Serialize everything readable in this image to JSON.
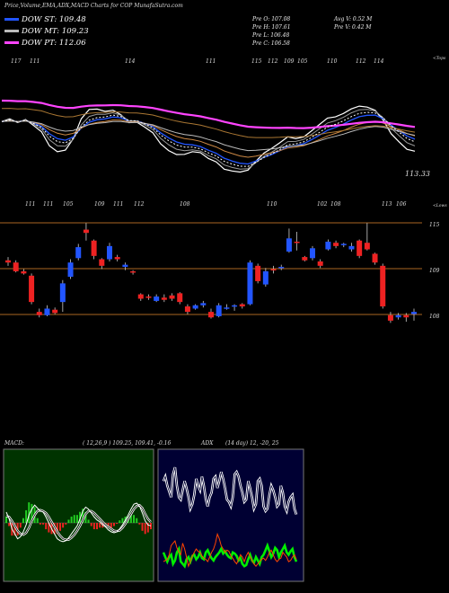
{
  "header": {
    "title": "Price,Volume,EMA,ADX,MACD Charts for COP MunafaSutra.com"
  },
  "legend": [
    {
      "label": "DOW ST: 109.48",
      "color": "#2255ff"
    },
    {
      "label": "DOW MT: 109.23",
      "color": "#bbbbbb"
    },
    {
      "label": "DOW PT: 112.06",
      "color": "#ff44ff"
    }
  ],
  "stats": {
    "col1": [
      "Pre O: 107.08",
      "Pre H: 107.61",
      "Pre L: 106.48",
      "Pre C: 106.58"
    ],
    "col2": [
      "Avg V: 0.52 M",
      "Pre V: 0.42 M"
    ]
  },
  "chart_data": [
    {
      "type": "line",
      "name": "ema-panel",
      "upper_tag": "<Tops",
      "lower_tag": "<Lows",
      "last_label": "113.33",
      "top_labels": [
        "117",
        "111",
        "114",
        "111",
        "115",
        "112",
        "109",
        "105",
        "110",
        "112",
        "114"
      ],
      "bottom_labels": [
        "111",
        "111",
        "105",
        "109",
        "111",
        "112",
        "108",
        "110",
        "102",
        "108",
        "113",
        "106"
      ],
      "close": [
        112,
        113,
        111,
        113,
        110,
        109,
        105,
        106,
        108,
        112,
        117,
        116,
        114,
        113,
        114,
        112,
        110,
        112,
        110,
        109,
        106,
        106,
        106,
        107,
        108,
        107,
        105,
        105,
        103,
        104,
        104,
        105,
        108,
        109,
        109,
        110,
        111,
        109,
        110,
        112,
        113,
        114,
        113,
        114,
        115,
        115,
        114,
        113,
        110,
        107,
        107,
        106,
        107
      ]
    },
    {
      "type": "candlestick",
      "name": "price-panel",
      "levels": [
        "115",
        "109",
        "108"
      ],
      "candles": [
        {
          "o": 112,
          "h": 112.3,
          "l": 111.5,
          "c": 111.8
        },
        {
          "o": 111.8,
          "h": 112.0,
          "l": 110.9,
          "c": 111.0
        },
        {
          "o": 111.0,
          "h": 111.2,
          "l": 110.7,
          "c": 110.8
        },
        {
          "o": 110.6,
          "h": 110.8,
          "l": 108.0,
          "c": 108.2
        },
        {
          "o": 107.3,
          "h": 107.6,
          "l": 106.8,
          "c": 107.0
        },
        {
          "o": 107.0,
          "h": 107.9,
          "l": 106.9,
          "c": 107.6
        },
        {
          "o": 107.5,
          "h": 107.7,
          "l": 107.1,
          "c": 107.2
        },
        {
          "o": 108.2,
          "h": 110.2,
          "l": 107.3,
          "c": 109.9
        },
        {
          "o": 110.5,
          "h": 112.1,
          "l": 110.3,
          "c": 111.8
        },
        {
          "o": 112.2,
          "h": 113.5,
          "l": 112.0,
          "c": 113.2
        },
        {
          "o": 114.8,
          "h": 115.4,
          "l": 113.8,
          "c": 114.5
        },
        {
          "o": 113.8,
          "h": 113.9,
          "l": 112.1,
          "c": 112.4
        },
        {
          "o": 112.1,
          "h": 112.2,
          "l": 111.2,
          "c": 111.5
        },
        {
          "o": 112.1,
          "h": 113.6,
          "l": 111.9,
          "c": 113.3
        },
        {
          "o": 112.3,
          "h": 112.5,
          "l": 111.9,
          "c": 112.1
        },
        {
          "o": 111.4,
          "h": 111.8,
          "l": 111.1,
          "c": 111.6
        },
        {
          "o": 111.0,
          "h": 111.1,
          "l": 110.7,
          "c": 110.9
        },
        {
          "o": 108.9,
          "h": 109.0,
          "l": 108.3,
          "c": 108.5
        },
        {
          "o": 108.7,
          "h": 108.9,
          "l": 108.4,
          "c": 108.6
        },
        {
          "o": 108.3,
          "h": 108.9,
          "l": 108.2,
          "c": 108.7
        },
        {
          "o": 108.6,
          "h": 108.9,
          "l": 108.2,
          "c": 108.4
        },
        {
          "o": 108.8,
          "h": 109.0,
          "l": 108.3,
          "c": 108.5
        },
        {
          "o": 109.0,
          "h": 109.1,
          "l": 108.0,
          "c": 108.2
        },
        {
          "o": 107.8,
          "h": 108.0,
          "l": 107.1,
          "c": 107.3
        },
        {
          "o": 107.6,
          "h": 108.0,
          "l": 107.5,
          "c": 107.9
        },
        {
          "o": 107.9,
          "h": 108.3,
          "l": 107.7,
          "c": 108.1
        },
        {
          "o": 107.3,
          "h": 107.6,
          "l": 106.7,
          "c": 106.8
        },
        {
          "o": 106.9,
          "h": 108.1,
          "l": 106.8,
          "c": 107.9
        },
        {
          "o": 107.6,
          "h": 108.0,
          "l": 107.5,
          "c": 107.7
        },
        {
          "o": 107.8,
          "h": 108.0,
          "l": 107.4,
          "c": 107.9
        },
        {
          "o": 108.0,
          "h": 108.1,
          "l": 107.6,
          "c": 107.8
        },
        {
          "o": 108.0,
          "h": 112.0,
          "l": 107.9,
          "c": 111.8
        },
        {
          "o": 111.5,
          "h": 111.7,
          "l": 109.9,
          "c": 110.1
        },
        {
          "o": 109.8,
          "h": 111.3,
          "l": 109.6,
          "c": 111.0
        },
        {
          "o": 111.2,
          "h": 111.5,
          "l": 110.8,
          "c": 111.1
        },
        {
          "o": 111.3,
          "h": 111.6,
          "l": 111.1,
          "c": 111.4
        },
        {
          "o": 112.8,
          "h": 114.9,
          "l": 112.7,
          "c": 114.0
        },
        {
          "o": 113.7,
          "h": 114.6,
          "l": 112.9,
          "c": 113.6
        },
        {
          "o": 112.3,
          "h": 112.4,
          "l": 111.9,
          "c": 112.0
        },
        {
          "o": 112.2,
          "h": 113.3,
          "l": 112.0,
          "c": 113.1
        },
        {
          "o": 111.9,
          "h": 112.1,
          "l": 111.3,
          "c": 111.5
        },
        {
          "o": 113.0,
          "h": 113.9,
          "l": 112.9,
          "c": 113.7
        },
        {
          "o": 113.6,
          "h": 113.8,
          "l": 113.1,
          "c": 113.3
        },
        {
          "o": 113.4,
          "h": 113.6,
          "l": 113.2,
          "c": 113.5
        },
        {
          "o": 113.0,
          "h": 113.6,
          "l": 112.8,
          "c": 113.3
        },
        {
          "o": 113.8,
          "h": 113.9,
          "l": 112.2,
          "c": 112.4
        },
        {
          "o": 113.6,
          "h": 115.4,
          "l": 112.9,
          "c": 113.0
        },
        {
          "o": 112.6,
          "h": 112.7,
          "l": 111.6,
          "c": 111.8
        },
        {
          "o": 111.5,
          "h": 111.7,
          "l": 107.6,
          "c": 107.8
        },
        {
          "o": 107.0,
          "h": 107.3,
          "l": 106.3,
          "c": 106.5
        },
        {
          "o": 106.8,
          "h": 107.2,
          "l": 106.6,
          "c": 107.0
        },
        {
          "o": 107.0,
          "h": 107.2,
          "l": 106.4,
          "c": 106.8
        },
        {
          "o": 107.1,
          "h": 107.6,
          "l": 106.5,
          "c": 107.3
        }
      ]
    },
    {
      "type": "line",
      "name": "macd-panel",
      "label": "MACD:",
      "params": "( 12,26,9 ) 109.25, 109.41, -0.16",
      "macd": [
        0.55,
        0.2,
        -0.3,
        -0.55,
        -0.8,
        -0.7,
        -0.45,
        -0.1,
        0.4,
        0.7,
        0.9,
        0.75,
        0.6,
        0.55,
        0.3,
        0.0,
        -0.3,
        -0.55,
        -0.8,
        -0.9,
        -0.95,
        -0.9,
        -0.75,
        -0.55,
        -0.35,
        -0.15,
        0.2,
        0.6,
        0.8,
        0.7,
        0.5,
        0.3,
        0.15,
        0.05,
        -0.1,
        -0.2,
        -0.35,
        -0.45,
        -0.5,
        -0.45,
        -0.3,
        -0.1,
        0.15,
        0.4,
        0.7,
        0.95,
        1.0,
        0.85,
        0.5,
        0.1,
        -0.1,
        -0.15
      ],
      "signal": [
        0.35,
        0.3,
        0.1,
        -0.15,
        -0.4,
        -0.55,
        -0.6,
        -0.5,
        -0.25,
        0.1,
        0.4,
        0.6,
        0.65,
        0.6,
        0.5,
        0.3,
        0.05,
        -0.2,
        -0.45,
        -0.65,
        -0.8,
        -0.85,
        -0.85,
        -0.75,
        -0.6,
        -0.4,
        -0.15,
        0.15,
        0.45,
        0.6,
        0.6,
        0.5,
        0.35,
        0.2,
        0.05,
        -0.1,
        -0.2,
        -0.3,
        -0.4,
        -0.42,
        -0.38,
        -0.25,
        -0.05,
        0.2,
        0.45,
        0.7,
        0.85,
        0.9,
        0.75,
        0.45,
        0.2,
        0.05
      ]
    },
    {
      "type": "line",
      "name": "adx-panel",
      "label": "ADX",
      "params": "(14 day) 12, -20, 25",
      "series": [
        {
          "name": "+DI",
          "color": "#00ee00",
          "values": [
            22,
            18,
            14,
            18,
            20,
            12,
            15,
            22,
            25,
            14,
            12,
            10,
            16,
            18,
            14,
            19,
            20,
            16,
            18,
            22,
            17,
            16,
            22,
            24,
            20,
            17,
            15,
            18,
            20,
            22,
            25,
            21,
            23,
            20,
            18,
            17,
            22,
            21,
            19,
            15,
            17,
            12,
            10,
            11,
            16,
            20,
            15,
            13,
            18,
            15,
            12,
            18,
            20,
            24,
            28,
            23,
            18,
            21,
            26,
            24,
            18,
            22,
            25,
            28,
            22,
            20,
            23,
            25,
            18,
            14
          ]
        },
        {
          "name": "-DI",
          "color": "#ff4400",
          "values": [
            14,
            15,
            16,
            20,
            28,
            30,
            32,
            26,
            22,
            20,
            30,
            25,
            18,
            10,
            14,
            19,
            22,
            25,
            23,
            22,
            19,
            17,
            16,
            14,
            18,
            22,
            25,
            30,
            38,
            34,
            28,
            25,
            22,
            24,
            23,
            19,
            17,
            14,
            12,
            16,
            20,
            18,
            14,
            19,
            22,
            18,
            15,
            12,
            10,
            12,
            14,
            16,
            17,
            15,
            18,
            22,
            24,
            20,
            16,
            14,
            16,
            17,
            22,
            20,
            18,
            14,
            15,
            18,
            20,
            16
          ]
        },
        {
          "name": "ADX",
          "color": "#ffffff",
          "values": [
            84,
            88,
            80,
            75,
            70,
            90,
            96,
            80,
            70,
            68,
            76,
            84,
            78,
            70,
            60,
            64,
            72,
            86,
            80,
            76,
            88,
            80,
            68,
            62,
            70,
            74,
            86,
            88,
            78,
            84,
            92,
            86,
            78,
            68,
            66,
            62,
            70,
            90,
            92,
            88,
            80,
            74,
            66,
            68,
            84,
            78,
            70,
            60,
            64,
            84,
            86,
            80,
            62,
            58,
            60,
            72,
            80,
            76,
            70,
            62,
            64,
            80,
            74,
            62,
            58,
            66,
            70,
            72,
            60,
            55
          ]
        }
      ]
    }
  ]
}
